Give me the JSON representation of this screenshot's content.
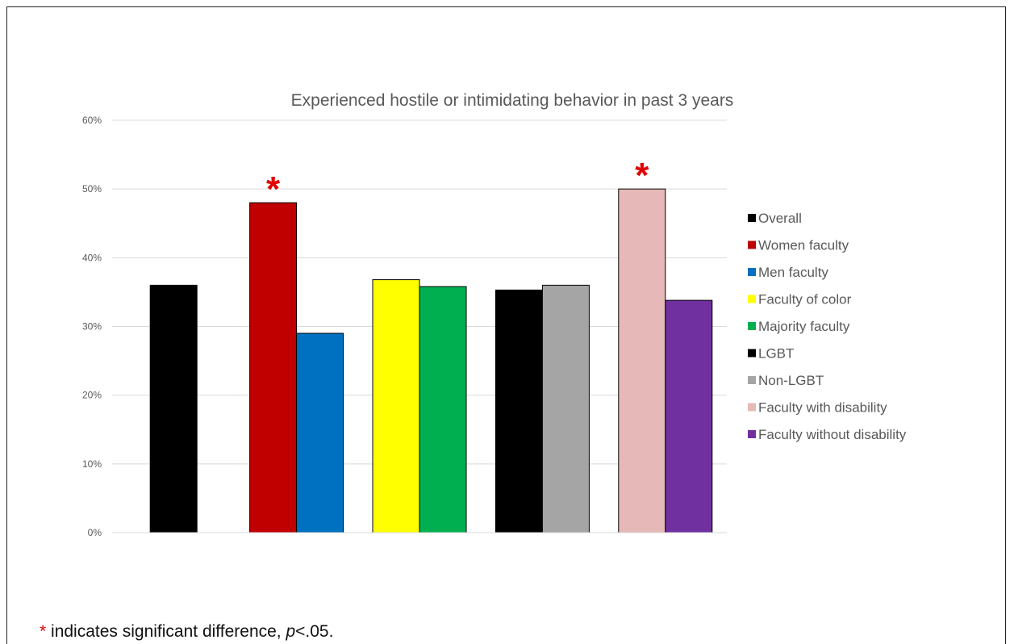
{
  "chart_data": {
    "type": "bar",
    "title": "Experienced hostile or intimidating behavior in past 3 years",
    "xlabel": "",
    "ylabel": "",
    "ylim": [
      0,
      60
    ],
    "yticks": [
      "0%",
      "10%",
      "20%",
      "30%",
      "40%",
      "50%",
      "60%"
    ],
    "grid": true,
    "legend_position": "right",
    "series": [
      {
        "name": "Overall",
        "value": 36,
        "color": "#000000",
        "group": 0
      },
      {
        "name": "Women faculty",
        "value": 48,
        "color": "#c00000",
        "group": 1,
        "significant": true
      },
      {
        "name": "Men faculty",
        "value": 29,
        "color": "#0070c0",
        "group": 1
      },
      {
        "name": "Faculty of color",
        "value": 36.8,
        "color": "#ffff00",
        "group": 2
      },
      {
        "name": "Majority faculty",
        "value": 35.8,
        "color": "#00b050",
        "group": 2
      },
      {
        "name": "LGBT",
        "value": 35.3,
        "color": "#000000",
        "group": 3
      },
      {
        "name": "Non-LGBT",
        "value": 36,
        "color": "#a5a5a5",
        "group": 3
      },
      {
        "name": "Faculty with disability",
        "value": 50,
        "color": "#e6b9b8",
        "group": 4,
        "significant": true
      },
      {
        "name": "Faculty without disability",
        "value": 33.8,
        "color": "#7030a0",
        "group": 4
      }
    ],
    "significance_marker": "*"
  },
  "footnote": {
    "star": "*",
    "text_before": " indicates significant difference, ",
    "p": "p",
    "text_after": "<.05."
  }
}
